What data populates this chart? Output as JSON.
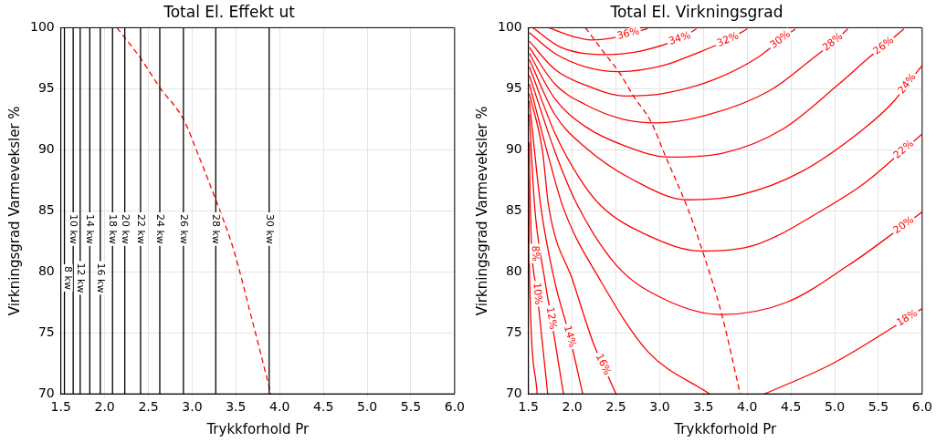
{
  "chart_data": [
    {
      "type": "line",
      "title": "Total El. Effekt ut",
      "xlabel": "Trykkforhold Pr",
      "ylabel": "Virkningsgrad Varmeveksler %",
      "xlim": [
        1.5,
        6.0
      ],
      "ylim": [
        70,
        100
      ],
      "xticks": [
        1.5,
        {
          "value": 2,
          "label": "2.0"
        },
        2.5,
        {
          "value": 3,
          "label": "3.0"
        },
        3.5,
        {
          "value": 4,
          "label": "4.0"
        },
        4.5,
        {
          "value": 5,
          "label": "5.0"
        },
        5.5,
        {
          "value": 6,
          "label": "6.0"
        }
      ],
      "yticks": [
        70,
        75,
        80,
        85,
        90,
        95,
        100
      ],
      "grid": true,
      "legend": false,
      "series": [
        {
          "color": "#000000",
          "x": [
            1.54,
            1.54
          ],
          "values": [
            70,
            100
          ]
        },
        {
          "color": "#000000",
          "x": [
            1.64,
            1.64
          ],
          "values": [
            70,
            100
          ]
        },
        {
          "color": "#000000",
          "x": [
            1.72,
            1.72
          ],
          "values": [
            70,
            100
          ]
        },
        {
          "color": "#000000",
          "x": [
            1.83,
            1.83
          ],
          "values": [
            70,
            100
          ]
        },
        {
          "color": "#000000",
          "x": [
            1.95,
            1.95
          ],
          "values": [
            70,
            100
          ]
        },
        {
          "color": "#000000",
          "x": [
            2.09,
            2.09
          ],
          "values": [
            70,
            100
          ]
        },
        {
          "color": "#000000",
          "x": [
            2.23,
            2.23
          ],
          "values": [
            70,
            100
          ]
        },
        {
          "color": "#000000",
          "x": [
            2.41,
            2.41
          ],
          "values": [
            70,
            100
          ]
        },
        {
          "color": "#000000",
          "x": [
            2.63,
            2.63
          ],
          "values": [
            70,
            100
          ]
        },
        {
          "color": "#000000",
          "x": [
            2.9,
            2.9
          ],
          "values": [
            70,
            100
          ]
        },
        {
          "color": "#000000",
          "x": [
            3.27,
            3.27
          ],
          "values": [
            70,
            100
          ]
        },
        {
          "color": "#000000",
          "x": [
            3.88,
            3.88
          ],
          "values": [
            70,
            100
          ]
        },
        {
          "color": "#ff0000",
          "line_style": "dashed",
          "x": [
            2.14,
            2.42,
            2.63,
            2.9,
            3.08,
            3.27,
            3.47,
            3.68,
            3.9
          ],
          "values": [
            100,
            97.4,
            95.1,
            92.5,
            89.4,
            85.9,
            81.9,
            76.2,
            70
          ]
        }
      ],
      "annotations": [
        {
          "text": "8 kw",
          "x": 1.54,
          "y": 79.5
        },
        {
          "text": "10 kw",
          "x": 1.64,
          "y": 83.5
        },
        {
          "text": "12 kw",
          "x": 1.72,
          "y": 79.5
        },
        {
          "text": "14 kw",
          "x": 1.83,
          "y": 83.5
        },
        {
          "text": "16 kw",
          "x": 1.95,
          "y": 79.5
        },
        {
          "text": "18 kw",
          "x": 2.09,
          "y": 83.5
        },
        {
          "text": "20 kw",
          "x": 2.23,
          "y": 83.5
        },
        {
          "text": "22 kw",
          "x": 2.41,
          "y": 83.5
        },
        {
          "text": "24 kw",
          "x": 2.63,
          "y": 83.5
        },
        {
          "text": "26 kw",
          "x": 2.9,
          "y": 83.5
        },
        {
          "text": "28 kw",
          "x": 3.27,
          "y": 83.5
        },
        {
          "text": "30 kw",
          "x": 3.88,
          "y": 83.5
        }
      ]
    },
    {
      "type": "line",
      "title": "Total El. Virkningsgrad",
      "xlabel": "Trykkforhold Pr",
      "ylabel": "Virkningsgrad Varmeveksler %",
      "xlim": [
        1.5,
        6.0
      ],
      "ylim": [
        70,
        100
      ],
      "xticks": [
        1.5,
        {
          "value": 2,
          "label": "2.0"
        },
        2.5,
        {
          "value": 3,
          "label": "3.0"
        },
        3.5,
        {
          "value": 4,
          "label": "4.0"
        },
        4.5,
        {
          "value": 5,
          "label": "5.0"
        },
        5.5,
        {
          "value": 6,
          "label": "6.0"
        }
      ],
      "yticks": [
        70,
        75,
        80,
        85,
        90,
        95,
        100
      ],
      "grid": true,
      "legend": false,
      "series": [
        {
          "color": "#ff0000",
          "x": [
            1.73,
            2.0,
            2.22,
            2.45,
            2.64,
            2.86
          ],
          "values": [
            100,
            99.3,
            99.0,
            99.15,
            99.5,
            99.9
          ]
        },
        {
          "color": "#ff0000",
          "x": [
            1.55,
            1.87,
            2.4,
            2.79,
            3.23,
            3.42
          ],
          "values": [
            100,
            98.4,
            97.8,
            98.1,
            99.1,
            99.9
          ]
        },
        {
          "color": "#ff0000",
          "x": [
            1.51,
            1.8,
            2.15,
            2.54,
            3.04,
            3.42,
            3.78,
            4.0
          ],
          "values": [
            99.6,
            97.9,
            96.8,
            96.4,
            96.9,
            97.9,
            99.0,
            99.9
          ]
        },
        {
          "color": "#ff0000",
          "x": [
            1.51,
            1.8,
            2.15,
            2.61,
            3.04,
            3.64,
            4.13,
            4.38,
            4.55
          ],
          "values": [
            98.9,
            96.6,
            95.3,
            94.4,
            94.6,
            95.8,
            97.6,
            99.0,
            99.9
          ]
        },
        {
          "color": "#ff0000",
          "x": [
            1.51,
            1.8,
            2.15,
            2.58,
            2.97,
            3.57,
            4.27,
            4.77,
            4.98,
            5.15
          ],
          "values": [
            98.4,
            95.4,
            93.7,
            92.5,
            92.2,
            92.9,
            94.9,
            97.6,
            98.8,
            99.9
          ]
        },
        {
          "color": "#ff0000",
          "x": [
            1.51,
            1.8,
            2.15,
            2.61,
            3.11,
            3.71,
            4.41,
            5.05,
            5.4,
            5.56,
            5.79
          ],
          "values": [
            97.9,
            94.2,
            91.9,
            90.3,
            89.4,
            89.7,
            91.7,
            95.4,
            97.6,
            98.5,
            99.9
          ]
        },
        {
          "color": "#ff0000",
          "x": [
            1.51,
            1.8,
            2.15,
            2.68,
            3.32,
            3.92,
            4.62,
            5.33,
            5.68,
            5.83,
            6.0
          ],
          "values": [
            97.4,
            92.9,
            90.2,
            87.6,
            85.9,
            86.3,
            88.2,
            91.7,
            94.0,
            95.4,
            96.9
          ]
        },
        {
          "color": "#ff0000",
          "x": [
            1.51,
            1.8,
            2.08,
            2.33,
            2.86,
            3.49,
            4.09,
            4.94,
            5.33,
            5.79,
            6.0
          ],
          "values": [
            96.8,
            91.4,
            87.7,
            85.4,
            83.0,
            81.7,
            82.2,
            85.4,
            87.2,
            90.0,
            91.3
          ]
        },
        {
          "color": "#ff0000",
          "x": [
            1.51,
            1.8,
            2.05,
            2.51,
            3.04,
            3.71,
            4.45,
            5.15,
            5.79,
            6.0
          ],
          "values": [
            96.1,
            89.9,
            85.6,
            80.5,
            77.8,
            76.5,
            77.5,
            80.5,
            83.8,
            84.9
          ]
        },
        {
          "color": "#ff0000",
          "x": [
            1.51,
            1.73,
            1.9,
            2.33,
            2.86,
            3.57,
            3.9,
            4.2,
            4.98,
            5.83,
            6.0
          ],
          "values": [
            95.4,
            89.4,
            85.2,
            79.2,
            73.5,
            70,
            null,
            70,
            72.5,
            76.2,
            77.0
          ]
        },
        {
          "color": "#ff0000",
          "x": [
            1.51,
            1.66,
            1.73,
            2.01,
            2.26,
            2.35,
            2.5
          ],
          "values": [
            94.6,
            89.9,
            85.4,
            79.2,
            73.8,
            72.4,
            70
          ]
        },
        {
          "color": "#ff0000",
          "x": [
            1.51,
            1.64,
            1.8,
            1.97,
            2.12
          ],
          "values": [
            94.0,
            85.4,
            79.2,
            74.7,
            70
          ]
        },
        {
          "color": "#ff0000",
          "x": [
            1.51,
            1.57,
            1.69,
            1.76,
            1.9
          ],
          "values": [
            92.9,
            85.4,
            79.2,
            76.2,
            70
          ]
        },
        {
          "color": "#ff0000",
          "x": [
            1.51,
            1.52,
            1.6,
            1.72
          ],
          "values": [
            90.6,
            85.4,
            78.2,
            70
          ]
        },
        {
          "color": "#ff0000",
          "x": [
            1.5,
            1.51,
            1.6
          ],
          "values": [
            87.7,
            80.5,
            70
          ]
        },
        {
          "color": "#ff0000",
          "line_style": "dashed",
          "x": [
            2.15,
            2.37,
            2.54,
            2.7,
            2.9,
            3.07,
            3.32,
            3.49,
            3.71,
            3.92
          ],
          "values": [
            100,
            97.9,
            96.3,
            94.4,
            92.3,
            89.4,
            85.2,
            81.7,
            76.5,
            70
          ]
        }
      ],
      "annotations": [
        {
          "text": "36%",
          "x": 2.64,
          "y": 99.5
        },
        {
          "text": "34%",
          "x": 3.23,
          "y": 99.1
        },
        {
          "text": "32%",
          "x": 3.78,
          "y": 99.0
        },
        {
          "text": "30%",
          "x": 4.38,
          "y": 99.0
        },
        {
          "text": "28%",
          "x": 4.98,
          "y": 98.8
        },
        {
          "text": "26%",
          "x": 5.56,
          "y": 98.5
        },
        {
          "text": "24%",
          "x": 5.83,
          "y": 95.4
        },
        {
          "text": "22%",
          "x": 5.79,
          "y": 90.0
        },
        {
          "text": "20%",
          "x": 5.79,
          "y": 83.8
        },
        {
          "text": "18%",
          "x": 5.83,
          "y": 76.2
        },
        {
          "text": "16%",
          "x": 2.35,
          "y": 72.4
        },
        {
          "text": "14%",
          "x": 1.97,
          "y": 74.7
        },
        {
          "text": "12%",
          "x": 1.76,
          "y": 76.2
        },
        {
          "text": "10%",
          "x": 1.6,
          "y": 78.2
        },
        {
          "text": "8%",
          "x": 1.51,
          "y": 81.5
        }
      ]
    }
  ]
}
